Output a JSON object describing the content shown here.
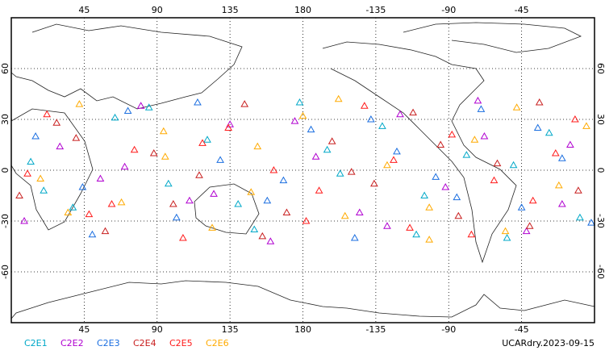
{
  "chart_data": {
    "type": "scatter",
    "label": "UCARdry.2023-09-15",
    "xlim": [
      0,
      360
    ],
    "ylim": [
      -90,
      90
    ],
    "xticks": [
      45,
      90,
      135,
      180,
      {
        "value": 225,
        "label": "-135"
      },
      {
        "value": 270,
        "label": "-90"
      },
      {
        "value": 315,
        "label": "-45"
      }
    ],
    "yticks": [
      -60,
      -30,
      0,
      30,
      60
    ],
    "grid": true,
    "series": [
      {
        "name": "C2E1",
        "color": "#00a8c8",
        "x": [
          12,
          38,
          64,
          97,
          121,
          150,
          178,
          203,
          229,
          255,
          281,
          306,
          332,
          351,
          20,
          85,
          140,
          195,
          250,
          310
        ],
        "values": [
          5,
          -22,
          31,
          -8,
          18,
          -35,
          40,
          -2,
          26,
          -15,
          9,
          -40,
          22,
          -28,
          -12,
          37,
          -20,
          12,
          -38,
          3
        ]
      },
      {
        "name": "C2E2",
        "color": "#b000d0",
        "x": [
          8,
          30,
          55,
          80,
          110,
          135,
          160,
          188,
          215,
          240,
          268,
          292,
          318,
          345,
          70,
          125,
          175,
          232,
          288,
          340
        ],
        "values": [
          -30,
          14,
          -5,
          38,
          -18,
          27,
          -42,
          8,
          -25,
          33,
          -10,
          20,
          -36,
          15,
          2,
          -14,
          29,
          -33,
          41,
          -20
        ]
      },
      {
        "name": "C2E3",
        "color": "#1a6ee0",
        "x": [
          15,
          44,
          72,
          102,
          129,
          158,
          185,
          212,
          238,
          262,
          290,
          315,
          340,
          358,
          50,
          115,
          168,
          222,
          275,
          325
        ],
        "values": [
          20,
          -10,
          35,
          -28,
          6,
          -18,
          24,
          -40,
          11,
          -4,
          36,
          -22,
          7,
          -31,
          -38,
          40,
          -6,
          30,
          -16,
          25
        ]
      },
      {
        "name": "C2E4",
        "color": "#c81e1e",
        "x": [
          5,
          28,
          58,
          88,
          116,
          144,
          170,
          198,
          224,
          248,
          276,
          300,
          326,
          350,
          40,
          100,
          155,
          210,
          265,
          320
        ],
        "values": [
          -15,
          28,
          -36,
          10,
          -3,
          39,
          -25,
          17,
          -8,
          34,
          -27,
          4,
          40,
          -12,
          19,
          -20,
          -39,
          -1,
          15,
          -33
        ]
      },
      {
        "name": "C2E5",
        "color": "#ff1a1a",
        "x": [
          22,
          48,
          76,
          106,
          134,
          162,
          190,
          218,
          246,
          272,
          298,
          322,
          348,
          10,
          62,
          118,
          182,
          236,
          284,
          336
        ],
        "values": [
          33,
          -26,
          12,
          -40,
          25,
          0,
          -12,
          38,
          -34,
          21,
          -6,
          -18,
          30,
          -2,
          -20,
          16,
          -30,
          6,
          -38,
          10
        ]
      },
      {
        "name": "C2E6",
        "color": "#ffaa00",
        "x": [
          18,
          42,
          68,
          94,
          124,
          152,
          180,
          206,
          232,
          258,
          286,
          312,
          338,
          355,
          35,
          95,
          148,
          202,
          258,
          305
        ],
        "values": [
          -5,
          39,
          -19,
          23,
          -34,
          14,
          32,
          -27,
          3,
          -41,
          18,
          37,
          -9,
          26,
          -25,
          8,
          -13,
          42,
          -22,
          -36
        ]
      }
    ]
  }
}
